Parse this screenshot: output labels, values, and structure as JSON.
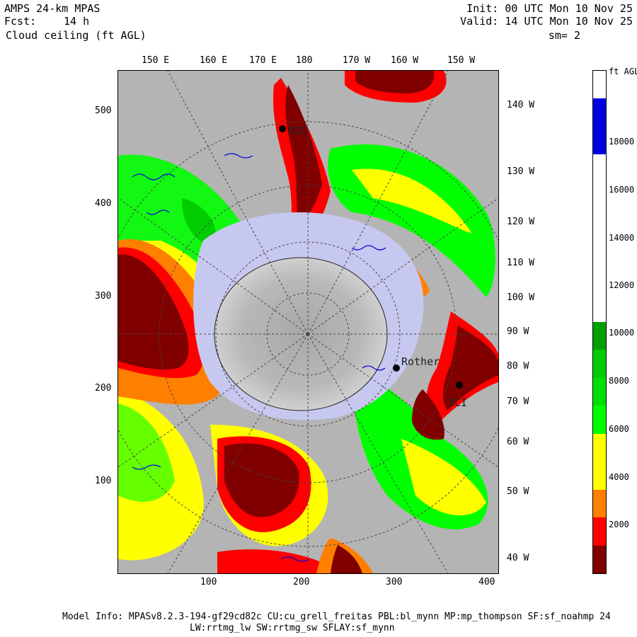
{
  "header": {
    "model": "AMPS 24-km MPAS",
    "fcst_label": "Fcst:",
    "fcst_value": "14 h",
    "field": "Cloud ceiling (ft AGL)",
    "init": "Init: 00 UTC Mon 10 Nov 25",
    "valid": "Valid: 14 UTC Mon 10 Nov 25",
    "smoothing": "sm= 2"
  },
  "map": {
    "top_lon_labels": [
      "150 E",
      "160 E",
      "170 E",
      "180",
      "170 W",
      "160 W",
      "150 W"
    ],
    "right_lon_labels": [
      "140 W",
      "130 W",
      "120 W",
      "110 W",
      "100 W",
      "90 W",
      "80 W",
      "70 W",
      "60 W",
      "50 W",
      "40 W"
    ],
    "y_ticks": [
      "500",
      "400",
      "300",
      "200",
      "100"
    ],
    "x_ticks": [
      "100",
      "200",
      "300",
      "400"
    ],
    "stations": [
      "MZC",
      "Rother",
      "ICI"
    ],
    "colors": {
      "land": "#b4b4b4",
      "ice": "#c7c8ef",
      "darkred": "#800000",
      "red": "#ff0000",
      "orange": "#ff7f00",
      "yellow": "#ffff00",
      "green": "#00ff00",
      "dkgreen": "#00a000",
      "blue": "#0000e0"
    }
  },
  "colorbar": {
    "unit": "ft AGL",
    "labels": [
      "18000",
      "16000",
      "14000",
      "12000",
      "10000",
      "8000",
      "6000",
      "4000",
      "2000"
    ],
    "segments": [
      {
        "color": "#ffffff"
      },
      {
        "color": "#0000e0"
      },
      {
        "color": "#0000e0"
      },
      {
        "color": "#ffffff"
      },
      {
        "color": "#ffffff"
      },
      {
        "color": "#ffffff"
      },
      {
        "color": "#ffffff"
      },
      {
        "color": "#ffffff"
      },
      {
        "color": "#ffffff"
      },
      {
        "color": "#00a000"
      },
      {
        "color": "#00cc00"
      },
      {
        "color": "#00e000"
      },
      {
        "color": "#00ff00"
      },
      {
        "color": "#ffff00"
      },
      {
        "color": "#ffff00"
      },
      {
        "color": "#ff7f00"
      },
      {
        "color": "#ff0000"
      },
      {
        "color": "#800000"
      }
    ]
  },
  "footer": {
    "line1": "Model Info: MPASv8.2.3-194-gf29cd82c CU:cu_grell_freitas PBL:bl_mynn MP:mp_thompson SF:sf_noahmp 24",
    "line2": "LW:rrtmg_lw SW:rrtmg_sw SFLAY:sf_mynn"
  }
}
